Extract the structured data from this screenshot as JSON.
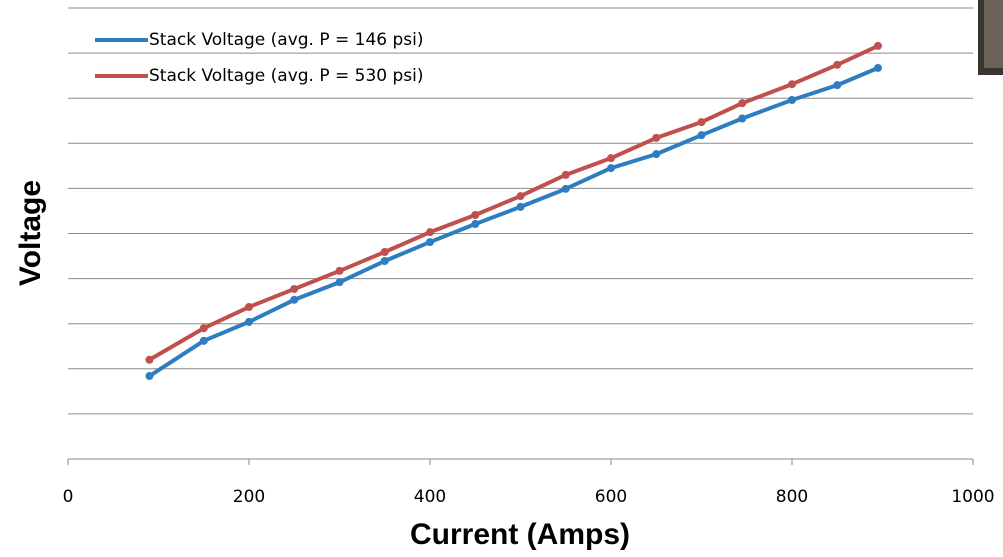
{
  "chart_data": {
    "type": "line",
    "x_label": "Current (Amps)",
    "y_label": "Voltage",
    "xlim": [
      0,
      1000
    ],
    "xticks": [
      0,
      200,
      400,
      600,
      800,
      1000
    ],
    "ylim": [
      0,
      10
    ],
    "ygrid": [
      0,
      1,
      2,
      3,
      4,
      5,
      6,
      7,
      8,
      9,
      10
    ],
    "legend": "top-left",
    "series": [
      {
        "name": "Stack Voltage (avg. P = 146 psi)",
        "color": "#2e7dc1",
        "x": [
          90,
          150,
          200,
          250,
          300,
          350,
          400,
          450,
          500,
          550,
          600,
          650,
          700,
          745,
          800,
          850,
          895
        ],
        "values": [
          1.84,
          2.62,
          3.04,
          3.53,
          3.92,
          4.39,
          4.81,
          5.21,
          5.59,
          5.99,
          6.45,
          6.76,
          7.18,
          7.55,
          7.96,
          8.29,
          8.67
        ]
      },
      {
        "name": "Stack Voltage (avg. P = 530 psi)",
        "color": "#c0504d",
        "x": [
          90,
          150,
          200,
          250,
          300,
          350,
          400,
          450,
          500,
          550,
          600,
          650,
          700,
          745,
          800,
          850,
          895
        ],
        "values": [
          2.2,
          2.9,
          3.37,
          3.77,
          4.17,
          4.59,
          5.03,
          5.41,
          5.83,
          6.3,
          6.67,
          7.12,
          7.47,
          7.89,
          8.31,
          8.74,
          9.16
        ]
      }
    ]
  }
}
